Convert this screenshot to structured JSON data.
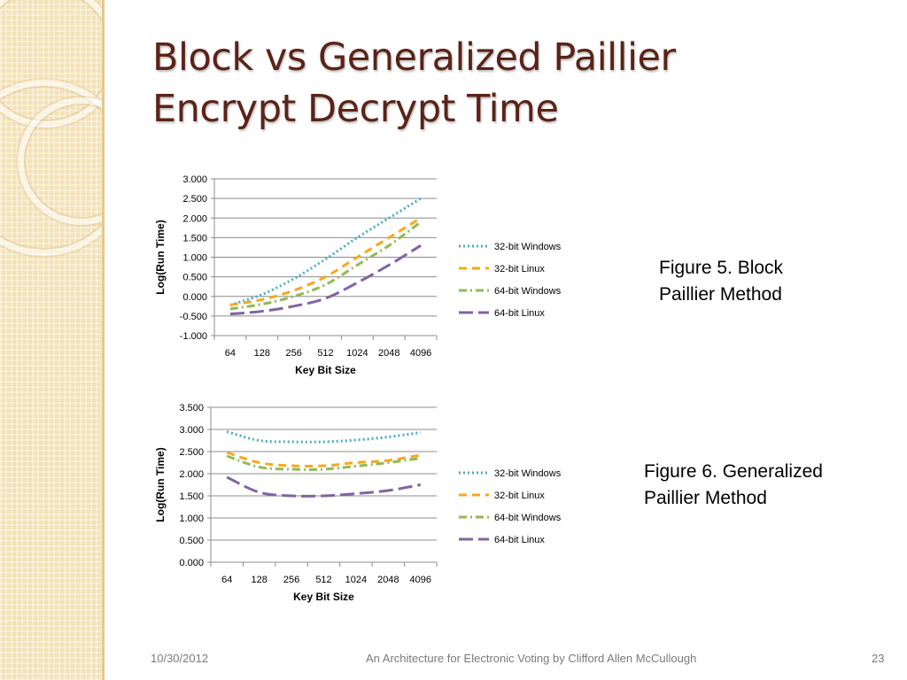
{
  "slide": {
    "title_line1": "Block vs Generalized Paillier",
    "title_line2": "Encrypt Decrypt Time",
    "footer_date": "10/30/2012",
    "footer_text": "An Architecture for Electronic Voting by Clifford Allen McCullough",
    "page_number": "23",
    "caption1_line1": "Figure 5.  Block",
    "caption1_line2": "Paillier Method",
    "caption2_line1": "Figure 6.  Generalized",
    "caption2_line2": "Paillier Method"
  },
  "chart_data": [
    {
      "type": "line",
      "title": "",
      "xlabel": "Key Bit Size",
      "ylabel": "Log(Run Time)",
      "categories": [
        "64",
        "128",
        "256",
        "512",
        "1024",
        "2048",
        "4096"
      ],
      "y_ticks": [
        "3.000",
        "2.500",
        "2.000",
        "1.500",
        "1.000",
        "0.500",
        "0.000",
        "-0.500",
        "-1.000"
      ],
      "ylim": [
        -1.0,
        3.0
      ],
      "grid": true,
      "legend_position": "right",
      "series": [
        {
          "name": "32-bit Windows",
          "color": "#4bacc6",
          "dash": "dotted",
          "values": [
            -0.22,
            0.05,
            0.45,
            0.95,
            1.5,
            2.0,
            2.5
          ]
        },
        {
          "name": "32-bit Linux",
          "color": "#f8a81c",
          "dash": "dash",
          "values": [
            -0.22,
            -0.08,
            0.15,
            0.5,
            1.0,
            1.5,
            2.0
          ]
        },
        {
          "name": "64-bit Windows",
          "color": "#92b955",
          "dash": "dashdot",
          "values": [
            -0.32,
            -0.2,
            0.0,
            0.3,
            0.8,
            1.3,
            1.9
          ]
        },
        {
          "name": "64-bit Linux",
          "color": "#8064a2",
          "dash": "longdash",
          "values": [
            -0.45,
            -0.38,
            -0.25,
            -0.05,
            0.35,
            0.8,
            1.3
          ]
        }
      ]
    },
    {
      "type": "line",
      "title": "",
      "xlabel": "Key Bit Size",
      "ylabel": "Log(Run Time)",
      "categories": [
        "64",
        "128",
        "256",
        "512",
        "1024",
        "2048",
        "4096"
      ],
      "y_ticks": [
        "3.500",
        "3.000",
        "2.500",
        "2.000",
        "1.500",
        "1.000",
        "0.500",
        "0.000"
      ],
      "ylim": [
        0.0,
        3.5
      ],
      "grid": true,
      "legend_position": "right",
      "series": [
        {
          "name": "32-bit Windows",
          "color": "#4bacc6",
          "dash": "dotted",
          "values": [
            2.95,
            2.75,
            2.72,
            2.72,
            2.76,
            2.83,
            2.93
          ]
        },
        {
          "name": "32-bit Linux",
          "color": "#f8a81c",
          "dash": "dash",
          "values": [
            2.48,
            2.25,
            2.18,
            2.18,
            2.25,
            2.3,
            2.42
          ]
        },
        {
          "name": "64-bit Windows",
          "color": "#92b955",
          "dash": "dashdot",
          "values": [
            2.4,
            2.15,
            2.1,
            2.1,
            2.17,
            2.25,
            2.35
          ]
        },
        {
          "name": "64-bit Linux",
          "color": "#8064a2",
          "dash": "longdash",
          "values": [
            1.92,
            1.58,
            1.5,
            1.5,
            1.55,
            1.62,
            1.75
          ]
        }
      ]
    }
  ]
}
